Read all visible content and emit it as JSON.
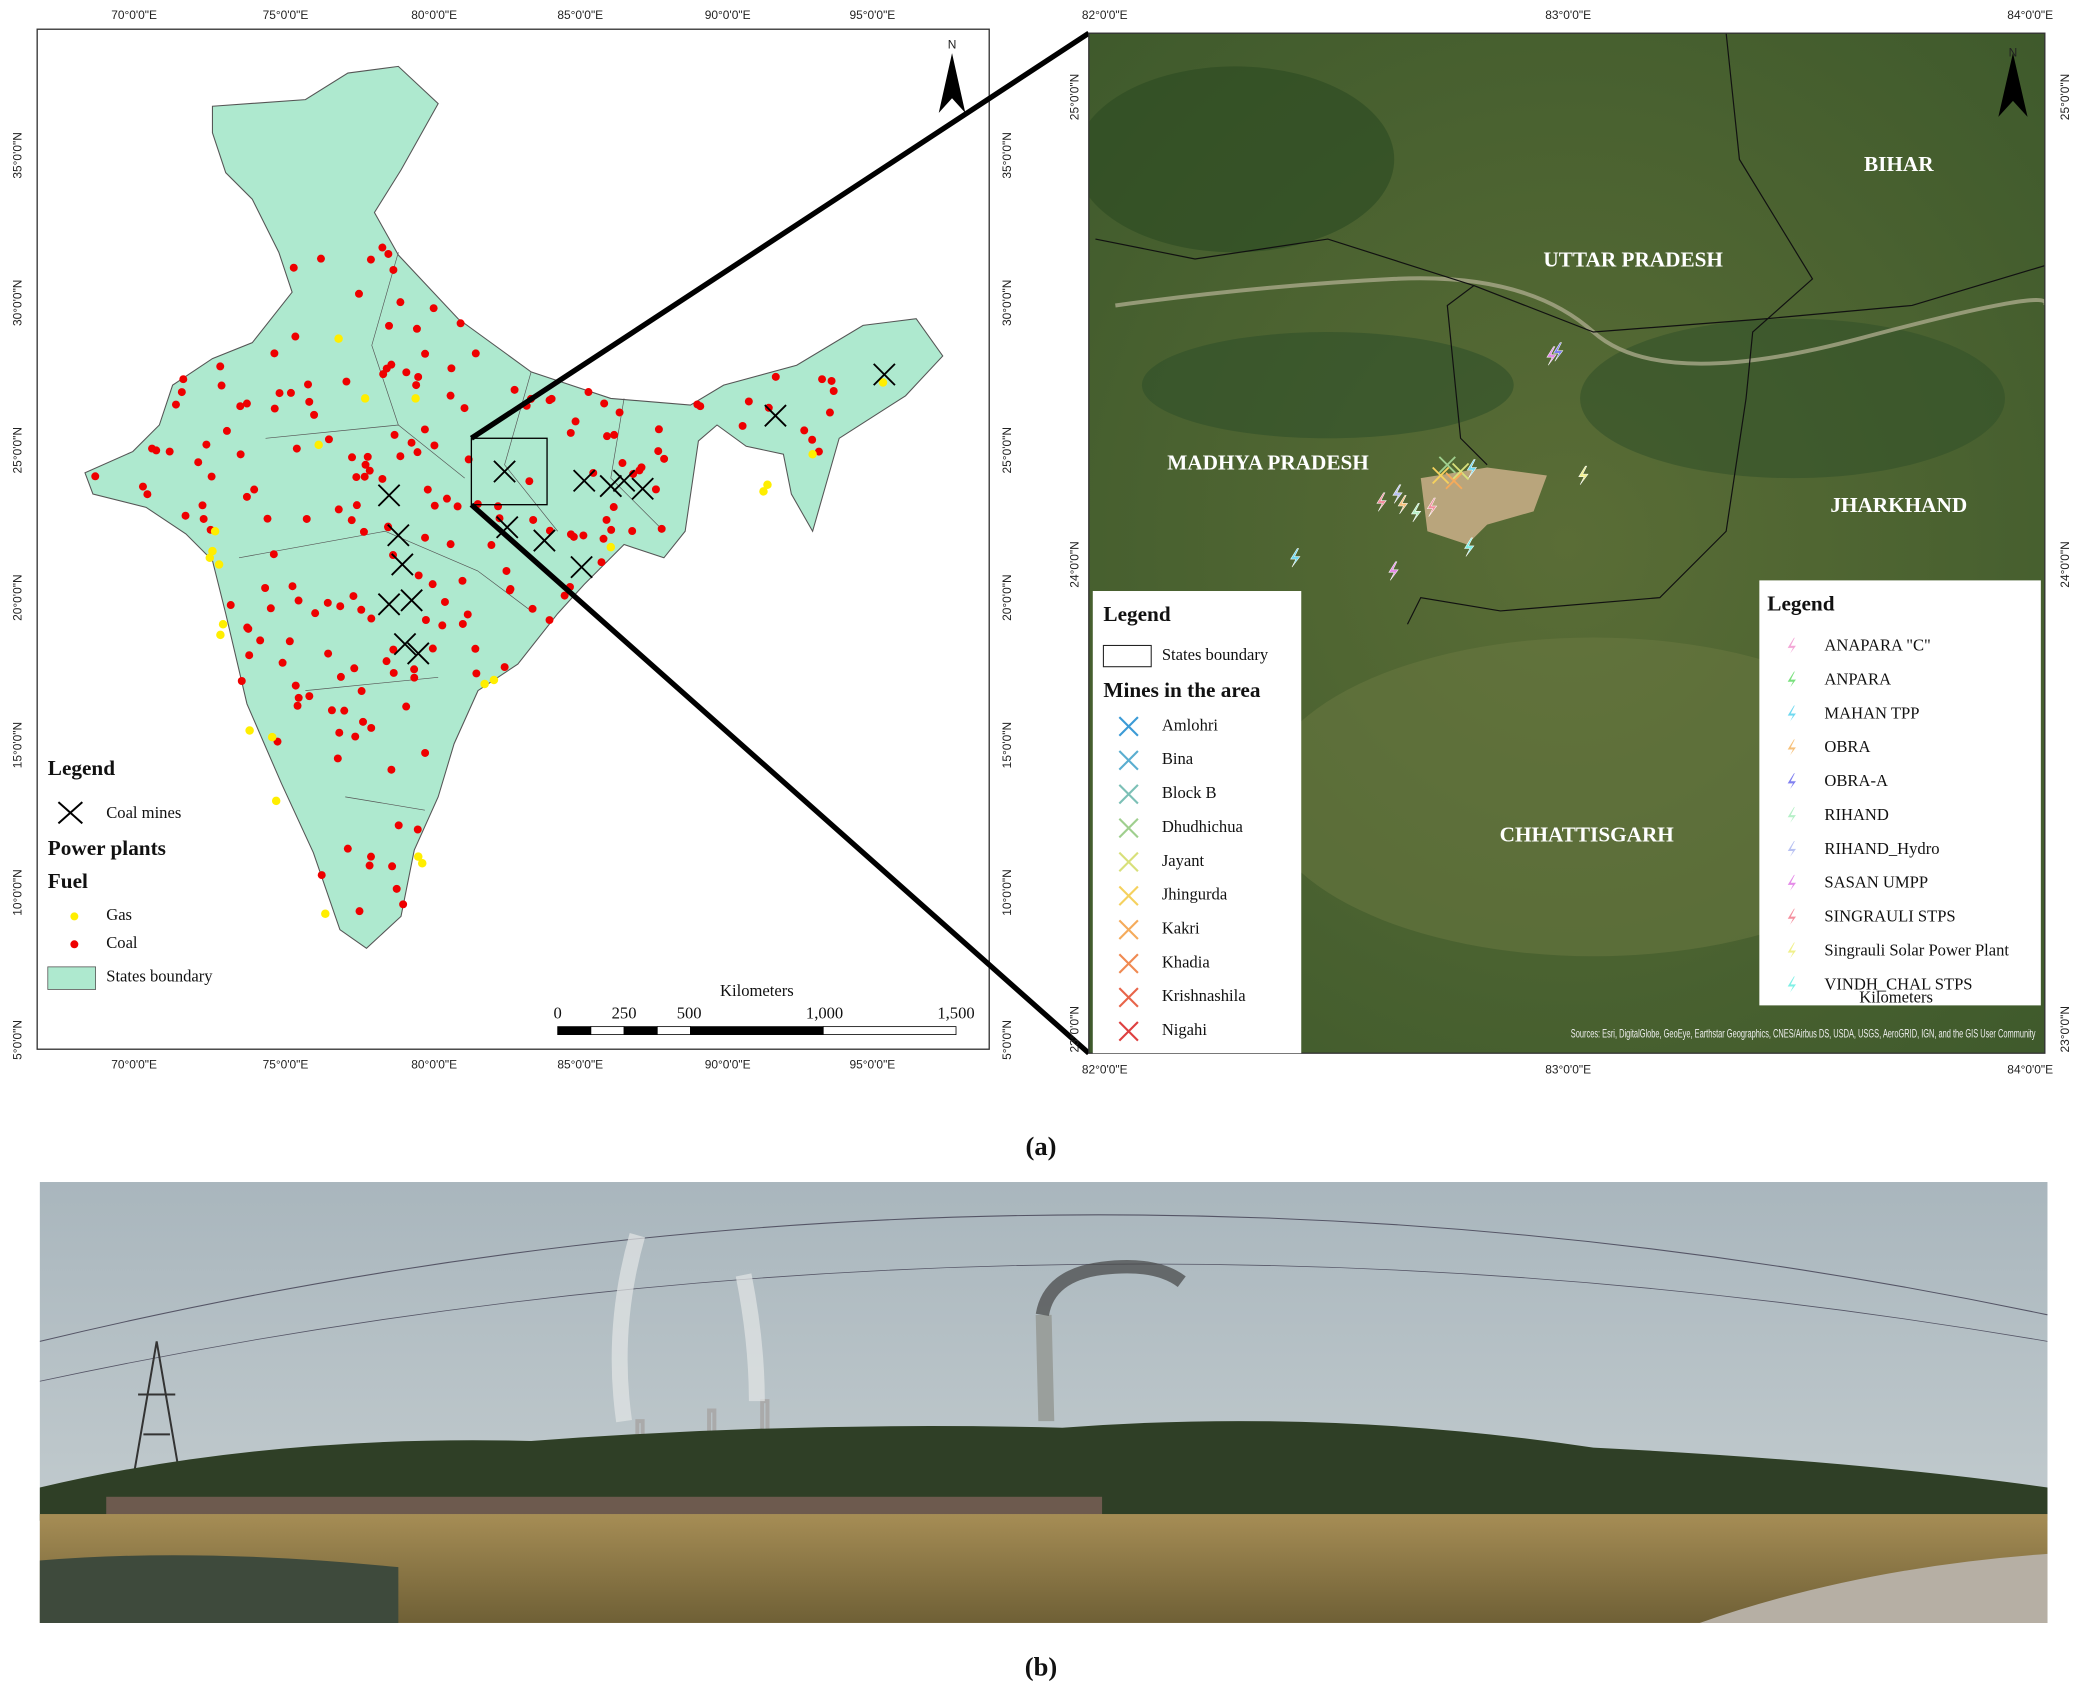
{
  "figure_a": {
    "caption": "(a)",
    "india_map": {
      "lon_labels": [
        "70°0'0\"E",
        "75°0'0\"E",
        "80°0'0\"E",
        "85°0'0\"E",
        "90°0'0\"E",
        "95°0'0\"E"
      ],
      "lat_labels": [
        "35°0'0\"N",
        "30°0'0\"N",
        "25°0'0\"N",
        "20°0'0\"N",
        "15°0'0\"N",
        "10°0'0\"N",
        "5°0'0\"N"
      ],
      "north": "N",
      "legend": {
        "title": "Legend",
        "coal_mines": "Coal mines",
        "power_plants": "Power plants",
        "fuel": "Fuel",
        "gas": "Gas",
        "coal": "Coal",
        "states_boundary": "States boundary"
      },
      "scale_bar": {
        "unit": "Kilometers",
        "labels": [
          "0",
          "250",
          "500",
          "1,000",
          "1,500"
        ]
      }
    },
    "area_map": {
      "lon_labels": [
        "82°0'0\"E",
        "83°0'0\"E",
        "84°0'0\"E"
      ],
      "lat_labels": [
        "25°0'0\"N",
        "24°0'0\"N",
        "23°0'0\"N"
      ],
      "north": "N",
      "states": [
        "BIHAR",
        "UTTAR PRADESH",
        "MADHYA PRADESH",
        "JHARKHAND",
        "CHHATTISGARH"
      ],
      "mines_legend": {
        "title": "Legend",
        "states_boundary": "States boundary",
        "subtitle": "Mines in the area",
        "mines": [
          "Amlohri",
          "Bina",
          "Block B",
          "Dhudhichua",
          "Jayant",
          "Jhingurda",
          "Kakri",
          "Khadia",
          "Krishnashila",
          "Nigahi"
        ]
      },
      "plants_legend": {
        "title": "Legend",
        "plants": [
          "ANAPARA \"C\"",
          "ANPARA",
          "MAHAN TPP",
          "OBRA",
          "OBRA-A",
          "RIHAND",
          "RIHAND_Hydro",
          "SASAN UMPP",
          "SINGRAULI STPS",
          "Singrauli Solar Power Plant",
          "VINDH_CHAL STPS"
        ]
      },
      "scale_unit": "Kilometers",
      "source": "Sources: Esri, DigitalGlobe, GeoEye, Earthstar Geographics, CNES/Airbus DS, USDA, USGS, AeroGRID, IGN, and the GIS User Community"
    }
  },
  "figure_b": {
    "caption": "(b)"
  }
}
